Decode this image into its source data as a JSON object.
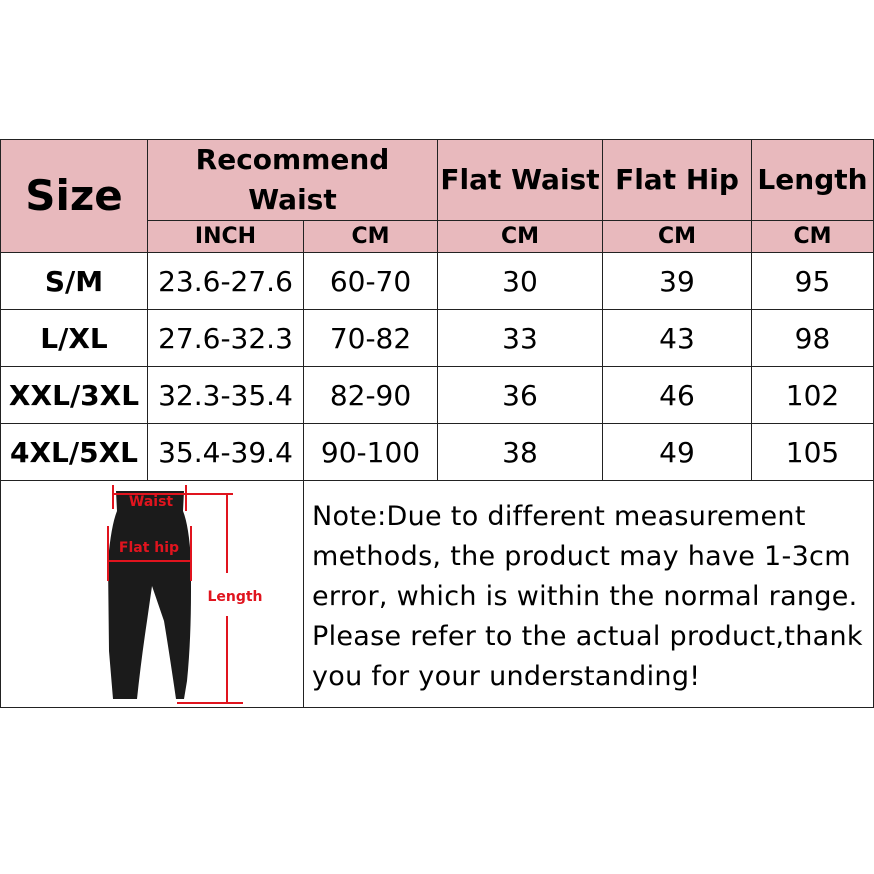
{
  "table": {
    "header": {
      "size": "Size",
      "recommend_waist": "Recommend Waist",
      "flat_waist": "Flat Waist",
      "flat_hip": "Flat Hip",
      "length": "Length"
    },
    "units": [
      "INCH",
      "CM",
      "CM",
      "CM",
      "CM"
    ],
    "rows": [
      [
        "S/M",
        "23.6-27.6",
        "60-70",
        "30",
        "39",
        "95"
      ],
      [
        "L/XL",
        "27.6-32.3",
        "70-82",
        "33",
        "43",
        "98"
      ],
      [
        "XXL/3XL",
        "32.3-35.4",
        "82-90",
        "36",
        "46",
        "102"
      ],
      [
        "4XL/5XL",
        "35.4-39.4",
        "90-100",
        "38",
        "49",
        "105"
      ]
    ]
  },
  "diagram": {
    "waist": "Waist",
    "flat_hip": "Flat hip",
    "length": "Length"
  },
  "note": "Note:Due to different measurement methods, the product may have 1-3cm error, which is within the normal range. Please refer to the actual product,thank you for your understanding!",
  "colors": {
    "header_bg": "#e8b9bd",
    "marker": "#e0141e"
  }
}
